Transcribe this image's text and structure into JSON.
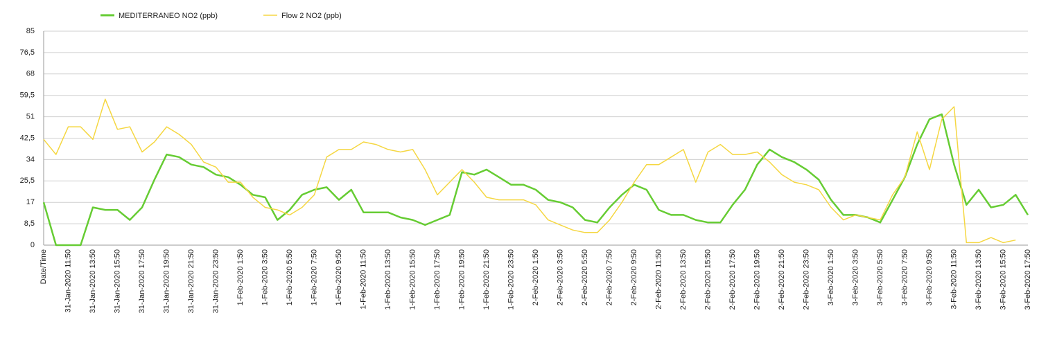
{
  "chart_data": {
    "type": "line",
    "categories": [
      "Date/Time",
      null,
      "31-Jan-2020 11:50",
      null,
      "31-Jan-2020 13:50",
      null,
      "31-Jan-2020 15:50",
      null,
      "31-Jan-2020 17:50",
      null,
      "31-Jan-2020 19:50",
      null,
      "31-Jan-2020 21:50",
      null,
      "31-Jan-2020 23:50",
      null,
      "1-Feb-2020 1:50",
      null,
      "1-Feb-2020 3:50",
      null,
      "1-Feb-2020 5:50",
      null,
      "1-Feb-2020 7:50",
      null,
      "1-Feb-2020 9:50",
      null,
      "1-Feb-2020 11:50",
      null,
      "1-Feb-2020 13:50",
      null,
      "1-Feb-2020 15:50",
      null,
      "1-Feb-2020 17:50",
      null,
      "1-Feb-2020 19:50",
      null,
      "1-Feb-2020 21:50",
      null,
      "1-Feb-2020 23:50",
      null,
      "2-Feb-2020 1:50",
      null,
      "2-Feb-2020 3:50",
      null,
      "2-Feb-2020 5:50",
      null,
      "2-Feb-2020 7:50",
      null,
      "2-Feb-2020 9:50",
      null,
      "2-Feb-2020 11:50",
      null,
      "2-Feb-2020 13:50",
      null,
      "2-Feb-2020 15:50",
      null,
      "2-Feb-2020 17:50",
      null,
      "2-Feb-2020 19:50",
      null,
      "2-Feb-2020 21:50",
      null,
      "2-Feb-2020 23:50",
      null,
      "3-Feb-2020 1:50",
      null,
      "3-Feb-2020 3:50",
      null,
      "3-Feb-2020 5:50",
      null,
      "3-Feb-2020 7:50",
      null,
      "3-Feb-2020 9:50",
      null,
      "3-Feb-2020 11:50",
      null,
      "3-Feb-2020 13:50",
      null,
      "3-Feb-2020 15:50",
      null,
      "3-Feb-2020 17:50"
    ],
    "series": [
      {
        "name": "MEDITERRANEO NO2 (ppb)",
        "color": "#66cc33",
        "values": [
          17,
          0,
          0,
          0,
          15,
          14,
          14,
          10,
          15,
          26,
          36,
          35,
          32,
          31,
          28,
          27,
          24,
          20,
          19,
          10,
          14,
          20,
          22,
          23,
          18,
          22,
          13,
          13,
          13,
          11,
          10,
          8,
          10,
          12,
          29,
          28,
          30,
          27,
          24,
          24,
          22,
          18,
          17,
          15,
          10,
          9,
          15,
          20,
          24,
          22,
          14,
          12,
          12,
          10,
          9,
          9,
          16,
          22,
          32,
          38,
          35,
          33,
          30,
          26,
          18,
          12,
          12,
          11,
          9,
          18,
          27,
          40,
          50,
          52,
          32,
          16,
          22,
          15,
          16,
          20,
          12
        ]
      },
      {
        "name": "Flow 2 NO2 (ppb)",
        "color": "#f5d742",
        "values": [
          42,
          36,
          47,
          47,
          42,
          58,
          46,
          47,
          37,
          41,
          47,
          44,
          40,
          33,
          31,
          25,
          25,
          19,
          15,
          14,
          12,
          15,
          20,
          35,
          38,
          38,
          41,
          40,
          38,
          37,
          38,
          30,
          20,
          25,
          30,
          25,
          19,
          18,
          18,
          18,
          16,
          10,
          8,
          6,
          5,
          5,
          10,
          17,
          25,
          32,
          32,
          35,
          38,
          25,
          37,
          40,
          36,
          36,
          37,
          33,
          28,
          25,
          24,
          22,
          15,
          10,
          12,
          11,
          10,
          20,
          27,
          45,
          30,
          50,
          55,
          1,
          1,
          3,
          1,
          2,
          null
        ]
      }
    ],
    "ylim": [
      0,
      85
    ],
    "yticks": [
      0,
      {
        "value": 8.5,
        "label": "8,5"
      },
      17,
      {
        "value": 25.5,
        "label": "25,5"
      },
      34,
      {
        "value": 42.5,
        "label": "42,5"
      },
      51,
      {
        "value": 59.5,
        "label": "59,5"
      },
      68,
      {
        "value": 76.5,
        "label": "76,5"
      },
      85
    ],
    "grid": true
  }
}
